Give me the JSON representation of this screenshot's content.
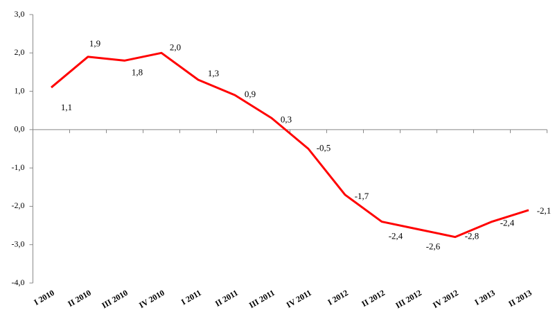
{
  "chart_data": {
    "type": "line",
    "categories": [
      "I 2010",
      "II 2010",
      "III 2010",
      "IV 2010",
      "I 2011",
      "II 2011",
      "III 2011",
      "IV 2011",
      "I 2012",
      "II 2012",
      "III 2012",
      "IV 2012",
      "I 2013",
      "II 2013"
    ],
    "values": [
      1.1,
      1.9,
      1.8,
      2.0,
      1.3,
      0.9,
      0.3,
      -0.5,
      -1.7,
      -2.4,
      -2.6,
      -2.8,
      -2.4,
      -2.1
    ],
    "value_labels": [
      "1,1",
      "1,9",
      "1,8",
      "2,0",
      "1,3",
      "0,9",
      "0,3",
      "-0,5",
      "-1,7",
      "-2,4",
      "-2,6",
      "-2,8",
      "-2,4",
      "-2,1"
    ],
    "color": "#ff0000",
    "ylim": [
      -4,
      3
    ],
    "yticks": [
      {
        "value": -4,
        "label": "-4,0"
      },
      {
        "value": -3,
        "label": "-3,0"
      },
      {
        "value": -2,
        "label": "-2,0"
      },
      {
        "value": -1,
        "label": "-1,0"
      },
      {
        "value": 0,
        "label": "0,0"
      },
      {
        "value": 1,
        "label": "1,0"
      },
      {
        "value": 2,
        "label": "2,0"
      },
      {
        "value": 3,
        "label": "3,0"
      }
    ],
    "grid": false
  }
}
